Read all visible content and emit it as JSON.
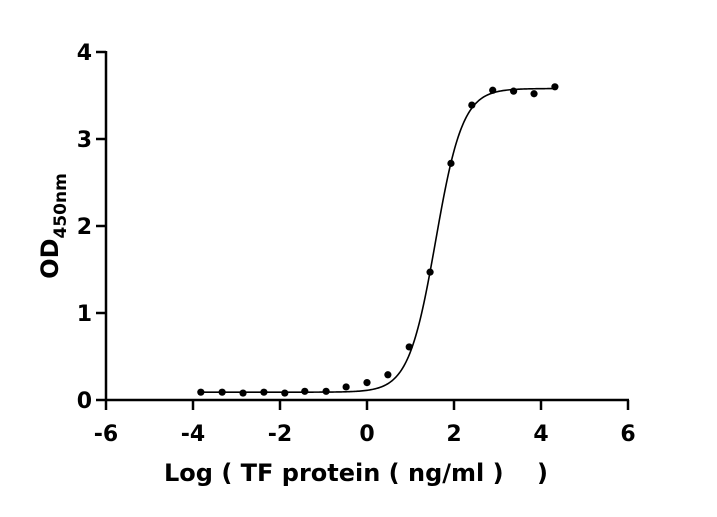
{
  "chart_data": {
    "type": "scatter",
    "title": "",
    "xlabel": "Log ( TF protein ( ng/ml )    )",
    "ylabel": "OD",
    "ylabel_subscript": "450nm",
    "xlim": [
      -6,
      6
    ],
    "ylim": [
      0,
      4
    ],
    "xticks": [
      -6,
      -4,
      -2,
      0,
      2,
      4,
      6
    ],
    "yticks": [
      0,
      1,
      2,
      3,
      4
    ],
    "grid": false,
    "points": [
      {
        "x": -3.82,
        "y": 0.09
      },
      {
        "x": -3.33,
        "y": 0.09
      },
      {
        "x": -2.85,
        "y": 0.08
      },
      {
        "x": -2.37,
        "y": 0.09
      },
      {
        "x": -1.89,
        "y": 0.08
      },
      {
        "x": -1.43,
        "y": 0.1
      },
      {
        "x": -0.94,
        "y": 0.1
      },
      {
        "x": -0.48,
        "y": 0.15
      },
      {
        "x": 0.0,
        "y": 0.2
      },
      {
        "x": 0.48,
        "y": 0.29
      },
      {
        "x": 0.97,
        "y": 0.61
      },
      {
        "x": 1.45,
        "y": 1.47
      },
      {
        "x": 1.93,
        "y": 2.72
      },
      {
        "x": 2.41,
        "y": 3.39
      },
      {
        "x": 2.89,
        "y": 3.56
      },
      {
        "x": 3.37,
        "y": 3.55
      },
      {
        "x": 3.84,
        "y": 3.52
      },
      {
        "x": 4.32,
        "y": 3.6
      }
    ],
    "fit": {
      "model": "4PL",
      "bottom": 0.09,
      "top": 3.58,
      "logEC50": 1.58,
      "hill": 1.4,
      "xrange": [
        -3.82,
        4.32
      ]
    },
    "colors": {
      "points": "#000000",
      "line": "#000000"
    }
  }
}
